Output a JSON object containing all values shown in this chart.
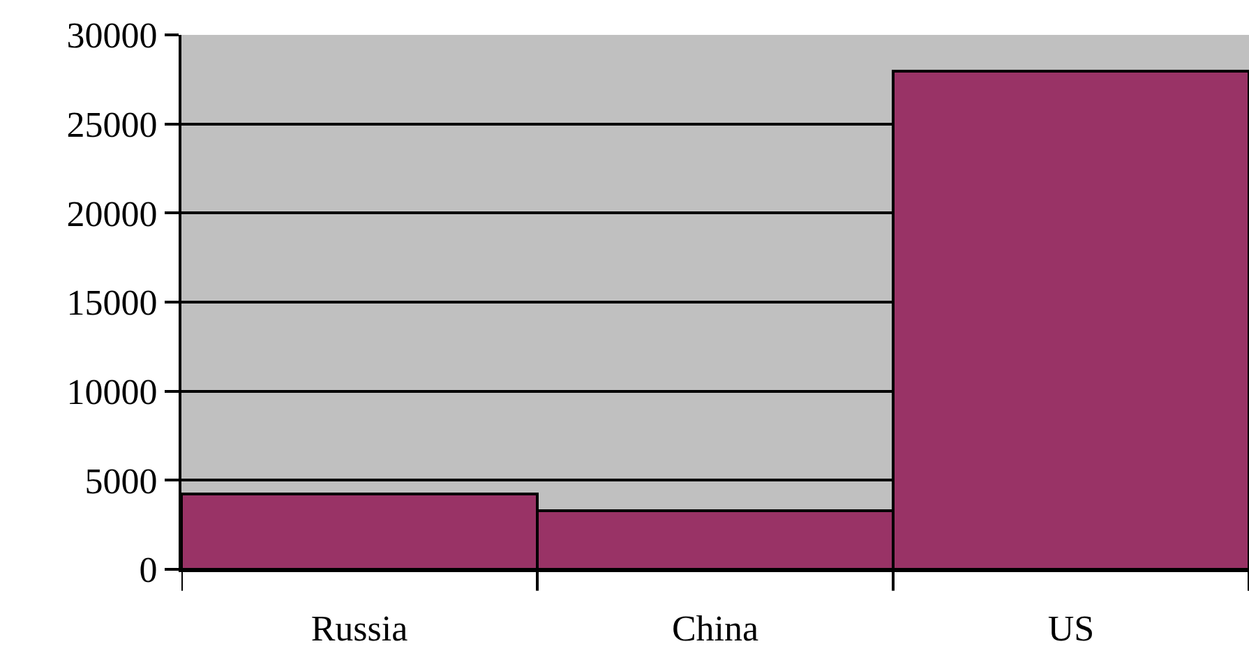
{
  "chart_data": {
    "type": "bar",
    "categories": [
      "Russia",
      "China",
      "US"
    ],
    "values": [
      4200,
      3300,
      28000
    ],
    "color": "#993366",
    "ylim": [
      0,
      30000
    ],
    "yticks": [
      0,
      5000,
      10000,
      15000,
      20000,
      25000,
      30000
    ],
    "grid": "y"
  }
}
